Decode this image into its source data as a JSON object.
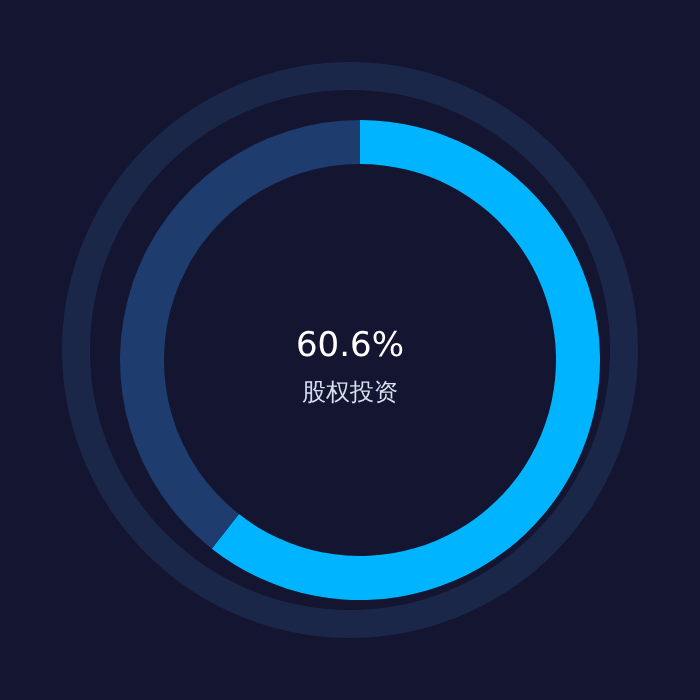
{
  "chart_data": {
    "type": "donut",
    "categories": [
      "股权投资",
      null
    ],
    "values": [
      60.6,
      39.4
    ],
    "colors": [
      "#00b4ff",
      "#1f3c6e"
    ],
    "value_labels": [
      "60.6%",
      null
    ]
  }
}
